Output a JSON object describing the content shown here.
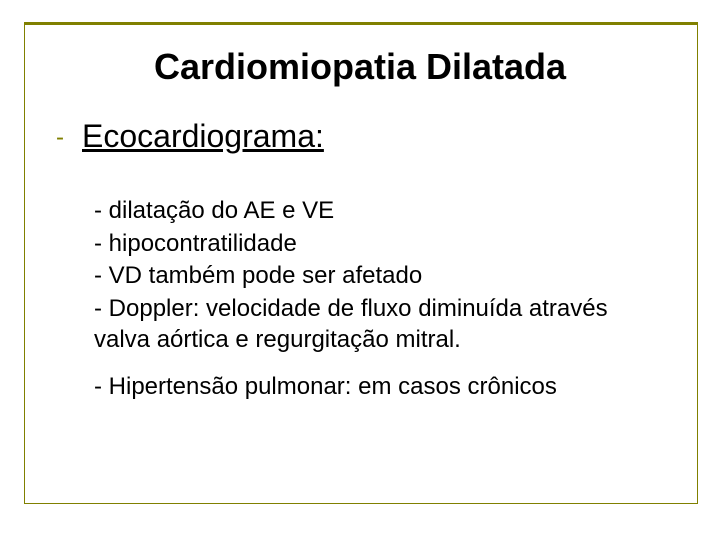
{
  "colors": {
    "border": "#808000",
    "bullet": "#808000",
    "text": "#000000",
    "background": "#ffffff"
  },
  "typography": {
    "title_fontsize": 36,
    "subtitle_fontsize": 32,
    "body_fontsize": 24,
    "title_weight": "bold",
    "font_family": "Arial"
  },
  "title": "Cardiomiopatia Dilatada",
  "subtitle_bullet": "-",
  "subtitle": "Ecocardiograma:",
  "lines": {
    "l1": "- dilatação do AE e VE",
    "l2": "- hipocontratilidade",
    "l3": "- VD também pode ser afetado",
    "l4": "- Doppler: velocidade de fluxo diminuída através valva aórtica e regurgitação mitral.",
    "l5": "- Hipertensão pulmonar: em casos crônicos"
  }
}
